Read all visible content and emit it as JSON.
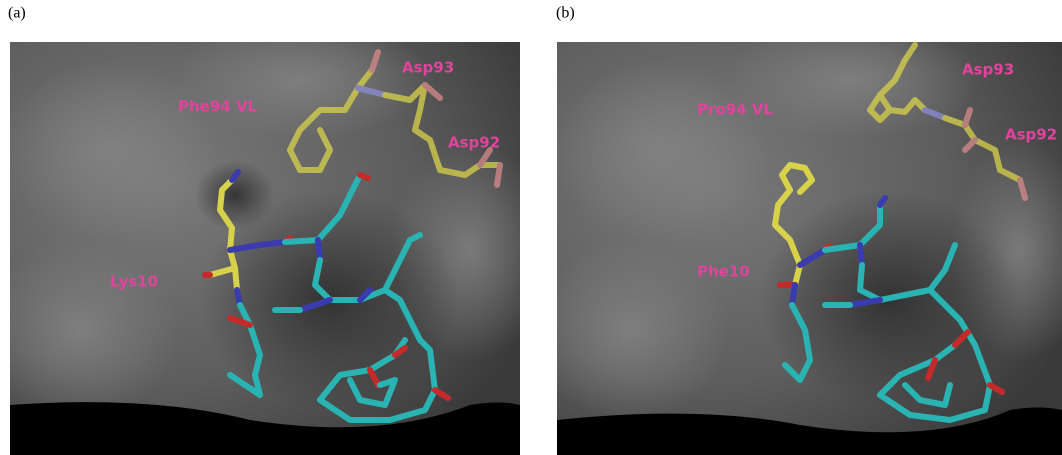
{
  "panels": [
    {
      "label": "(a)",
      "annotations": [
        "Phe94 VL",
        "Asp93",
        "Asp92",
        "Lys10"
      ]
    },
    {
      "label": "(b)",
      "annotations": [
        "Pro94 VL",
        "Asp93",
        "Asp92",
        "Phe10"
      ]
    }
  ]
}
